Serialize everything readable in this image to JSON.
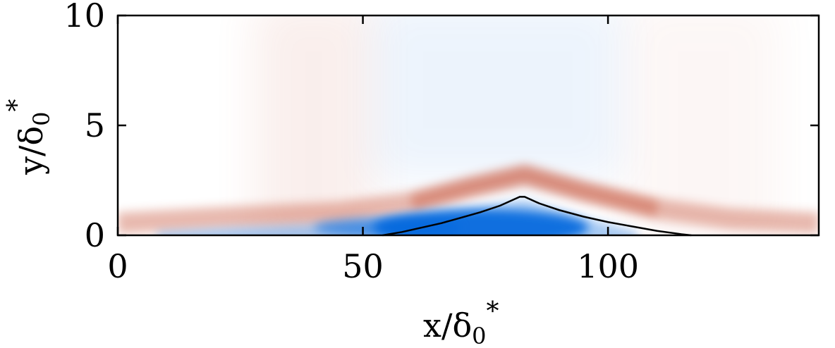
{
  "chart_data": {
    "type": "heatmap",
    "title": "",
    "xlabel": {
      "base": "x/δ",
      "sub": "0",
      "sup": "*"
    },
    "ylabel": {
      "base": "y/δ",
      "sub": "0",
      "sup": "*"
    },
    "xlim": [
      0,
      143
    ],
    "ylim": [
      0,
      10
    ],
    "xticks": [
      0,
      50,
      100
    ],
    "yticks": [
      0,
      5,
      10
    ],
    "xtick_labels": [
      "0",
      "50",
      "100"
    ],
    "ytick_labels": [
      "0",
      "5",
      "10"
    ],
    "grid": false,
    "colormap": {
      "negative": "#0066dd",
      "zero": "#ffffff",
      "positive": "#cc6650"
    },
    "contour_line": {
      "color": "#000000",
      "x": [
        54,
        58,
        62,
        66,
        70,
        74,
        78,
        82,
        83,
        86,
        90,
        95,
        100,
        105,
        110,
        115,
        117
      ],
      "y": [
        0,
        0.15,
        0.35,
        0.55,
        0.8,
        1.05,
        1.35,
        1.75,
        1.75,
        1.45,
        1.15,
        0.85,
        0.6,
        0.4,
        0.2,
        0.05,
        0
      ]
    },
    "features": [
      {
        "sign": "positive",
        "description_x": [
          0,
          50,
          83,
          117,
          143
        ],
        "description_y": [
          1,
          1.2,
          2.8,
          1.0,
          0.5
        ]
      },
      {
        "sign": "negative",
        "description_x": [
          10,
          50,
          75,
          100
        ],
        "description_y": [
          0.3,
          0.4,
          0.5,
          0.3
        ]
      }
    ]
  }
}
